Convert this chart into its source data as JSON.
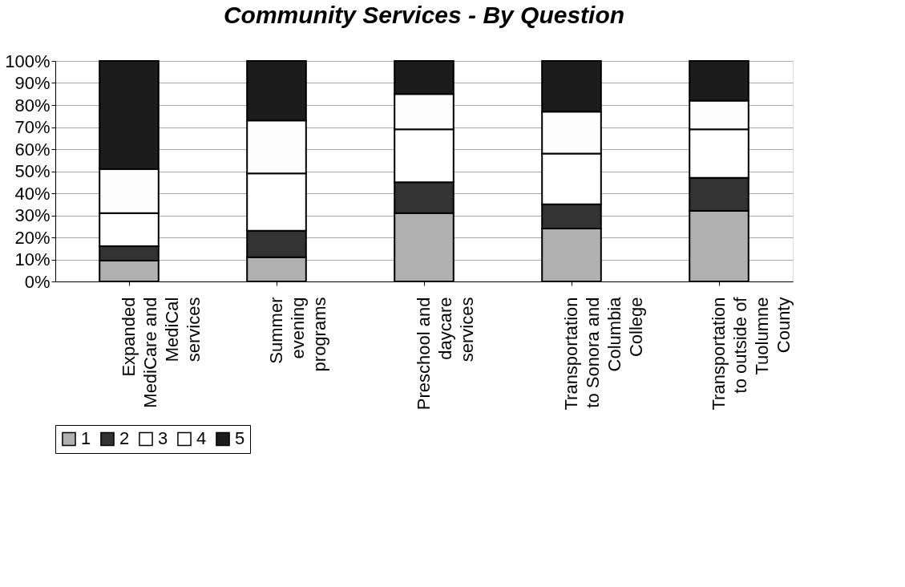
{
  "chart_data": {
    "type": "bar",
    "stacked": true,
    "title": "Community Services - By Question",
    "categories": [
      "Expanded\nMediCare and\nMediCal\nservices",
      "Summer\nevening\nprograms",
      "Preschool and\ndaycare\nservices",
      "Transportation\nto Sonora and\nColumbia\nCollege",
      "Transportation\nto outside of\nTuolumne\nCounty"
    ],
    "series": [
      {
        "name": "1",
        "color": "#b0b0b0",
        "values": [
          9.5,
          11,
          31,
          24,
          32
        ]
      },
      {
        "name": "2",
        "color": "#333333",
        "values": [
          6.5,
          12,
          14,
          11,
          15
        ]
      },
      {
        "name": "3",
        "color": "#ffffff",
        "values": [
          15,
          26,
          24,
          23,
          22
        ]
      },
      {
        "name": "4",
        "color": "#fdfdfd",
        "values": [
          20,
          24,
          16,
          19,
          13
        ]
      },
      {
        "name": "5",
        "color": "#1c1c1c",
        "values": [
          49,
          27,
          15,
          23,
          18
        ]
      }
    ],
    "ylim": [
      0,
      100
    ],
    "yticks": [
      {
        "value": 0,
        "label": "0%"
      },
      {
        "value": 10,
        "label": "10%"
      },
      {
        "value": 20,
        "label": "20%"
      },
      {
        "value": 30,
        "label": "30%"
      },
      {
        "value": 40,
        "label": "40%"
      },
      {
        "value": 50,
        "label": "50%"
      },
      {
        "value": 60,
        "label": "60%"
      },
      {
        "value": 70,
        "label": "70%"
      },
      {
        "value": 80,
        "label": "80%"
      },
      {
        "value": 90,
        "label": "90%"
      },
      {
        "value": 100,
        "label": "100%"
      }
    ],
    "grid": "y",
    "legend": "bottom"
  }
}
